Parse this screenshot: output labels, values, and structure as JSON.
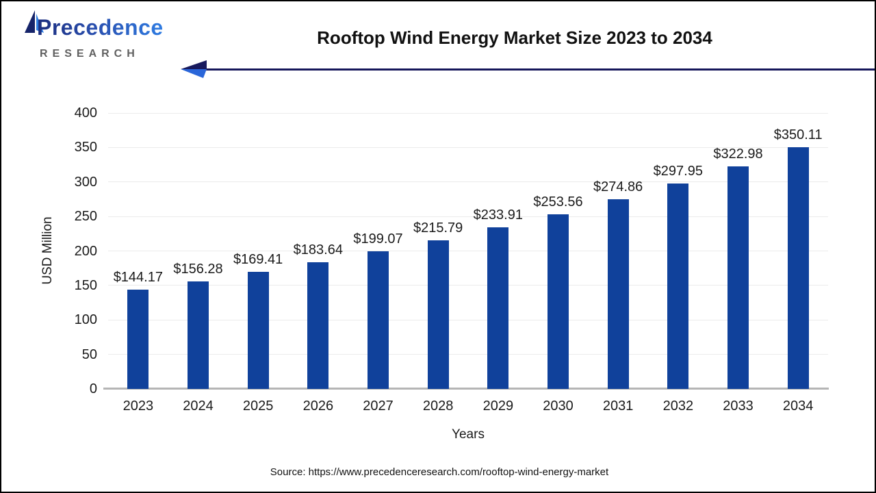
{
  "window": {
    "background": "#ffffff",
    "border_color": "#000000"
  },
  "logo": {
    "brand": "Precedence",
    "subtitle": "RESEARCH",
    "sail_dark": "#16246a",
    "sail_light": "#2e7de0",
    "subtitle_color": "#606060"
  },
  "header": {
    "title": "Rooftop Wind Energy Market Size 2023 to 2034",
    "divider_color": "#16175b",
    "arrow_dark": "#181a5e",
    "arrow_light": "#2a66d9"
  },
  "chart_data": {
    "type": "bar",
    "title": "Rooftop Wind Energy Market Size 2023 to 2034",
    "categories": [
      "2023",
      "2024",
      "2025",
      "2026",
      "2027",
      "2028",
      "2029",
      "2030",
      "2031",
      "2032",
      "2033",
      "2034"
    ],
    "values": [
      144.17,
      156.28,
      169.41,
      183.64,
      199.07,
      215.79,
      233.91,
      253.56,
      274.86,
      297.95,
      322.98,
      350.11
    ],
    "value_labels": [
      "$144.17",
      "$156.28",
      "$169.41",
      "$183.64",
      "$199.07",
      "$215.79",
      "$233.91",
      "$253.56",
      "$274.86",
      "$297.95",
      "$322.98",
      "$350.11"
    ],
    "xlabel": "Years",
    "ylabel": "USD Million",
    "ylim": [
      0,
      400
    ],
    "yticks": [
      0,
      50,
      100,
      150,
      200,
      250,
      300,
      350,
      400
    ],
    "grid": true,
    "legend": false,
    "bar_color": "#10419b",
    "gridline_color": "#ebebeb",
    "axis_line_color": "#b5b5b5"
  },
  "footer": {
    "source": "Source: https://www.precedenceresearch.com/rooftop-wind-energy-market"
  }
}
